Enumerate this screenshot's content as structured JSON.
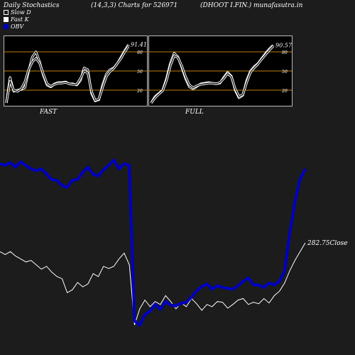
{
  "header": {
    "left": "Daily Stochastics",
    "mid": "(14,3,3) Charts for 526971",
    "right": "(DHOOT I.FIN.) munafasutra.in"
  },
  "legend": [
    {
      "label": "Slow  D",
      "icon": "hollow-square"
    },
    {
      "label": "Fast K",
      "icon": "white-square"
    },
    {
      "label": "OBV",
      "icon": "blue-square"
    }
  ],
  "colors": {
    "background": "#1c1c1c",
    "panel_bg": "#000000",
    "panel_grid": "#c08000",
    "stoch_line": "#ffffff",
    "obv": "#0000c0",
    "close": "#ffffff"
  },
  "chart_data": [
    {
      "type": "line",
      "panel": "FAST",
      "title": "FAST",
      "ylim": [
        0,
        100
      ],
      "ticks": [
        20,
        50,
        80
      ],
      "last_label": "91.41",
      "series": [
        {
          "values": [
            0,
            40,
            18,
            20,
            21,
            24,
            50,
            72,
            80,
            64,
            43,
            28,
            25,
            30,
            32,
            32,
            33,
            30,
            30,
            28,
            35,
            55,
            52,
            15,
            3,
            5,
            28,
            45,
            52,
            55,
            62,
            72,
            82,
            91.41
          ]
        },
        {
          "values": [
            0,
            34,
            20,
            18,
            22,
            33,
            52,
            64,
            70,
            62,
            45,
            30,
            26,
            29,
            31,
            31,
            32,
            30,
            29,
            29,
            38,
            50,
            47,
            18,
            4,
            6,
            24,
            41,
            49,
            54,
            62,
            70,
            80,
            89
          ]
        }
      ]
    },
    {
      "type": "line",
      "panel": "FULL",
      "title": "FULL",
      "ylim": [
        0,
        100
      ],
      "ticks": [
        20,
        50,
        80
      ],
      "last_label": "90.57",
      "series": [
        {
          "values": [
            0,
            10,
            15,
            20,
            38,
            62,
            78,
            72,
            56,
            38,
            25,
            22,
            26,
            30,
            31,
            32,
            31,
            30,
            31,
            40,
            48,
            42,
            20,
            8,
            12,
            35,
            50,
            57,
            62,
            70,
            78,
            85,
            90.57
          ]
        },
        {
          "values": [
            0,
            8,
            14,
            19,
            35,
            58,
            74,
            71,
            58,
            41,
            28,
            24,
            27,
            29,
            30,
            31,
            31,
            30,
            32,
            38,
            46,
            41,
            22,
            10,
            13,
            32,
            48,
            55,
            61,
            69,
            76,
            83,
            89
          ]
        }
      ]
    },
    {
      "type": "line",
      "title": "",
      "close_label": "282.75Close",
      "series": [
        {
          "name": "OBV",
          "values": [
            318,
            316,
            319,
            314,
            320,
            316,
            312,
            310,
            312,
            306,
            300,
            299,
            293,
            291,
            299,
            300,
            308,
            314,
            306,
            304,
            311,
            316,
            322,
            312,
            318,
            316,
            139,
            134,
            146,
            150,
            158,
            152,
            161,
            157,
            156,
            159,
            160,
            166,
            173,
            178,
            181,
            175,
            179,
            177,
            176,
            175,
            179,
            184,
            188,
            180,
            180,
            177,
            182,
            180,
            184,
            195,
            238,
            274,
            300,
            312
          ]
        },
        {
          "name": "Close",
          "values": [
            138,
            134,
            138,
            132,
            128,
            124,
            126,
            120,
            114,
            118,
            110,
            104,
            101,
            82,
            86,
            96,
            90,
            94,
            108,
            104,
            118,
            115,
            118,
            128,
            136,
            120,
            38,
            60,
            72,
            63,
            70,
            66,
            78,
            70,
            60,
            68,
            63,
            74,
            67,
            58,
            66,
            63,
            70,
            69,
            61,
            66,
            72,
            74,
            66,
            69,
            67,
            74,
            68,
            78,
            84,
            95,
            112,
            126,
            138,
            150
          ]
        }
      ]
    }
  ]
}
